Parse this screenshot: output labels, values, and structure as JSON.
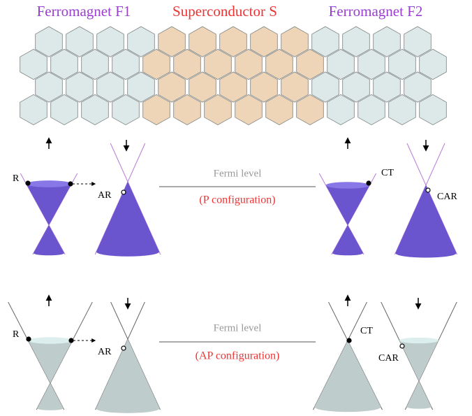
{
  "header": {
    "left": "Ferromagnet F1",
    "middle": "Superconductor S",
    "right": "Ferromagnet F2"
  },
  "panels": [
    {
      "reflection": "R",
      "andreev": "AR",
      "fermi_level": "Fermi level",
      "configuration": "(P configuration)",
      "cotunneling": "CT",
      "crossed_andreev": "CAR"
    },
    {
      "reflection": "R",
      "andreev": "AR",
      "fermi_level": "Fermi level",
      "configuration": "(AP configuration)",
      "cotunneling": "CT",
      "crossed_andreev": "CAR"
    }
  ]
}
